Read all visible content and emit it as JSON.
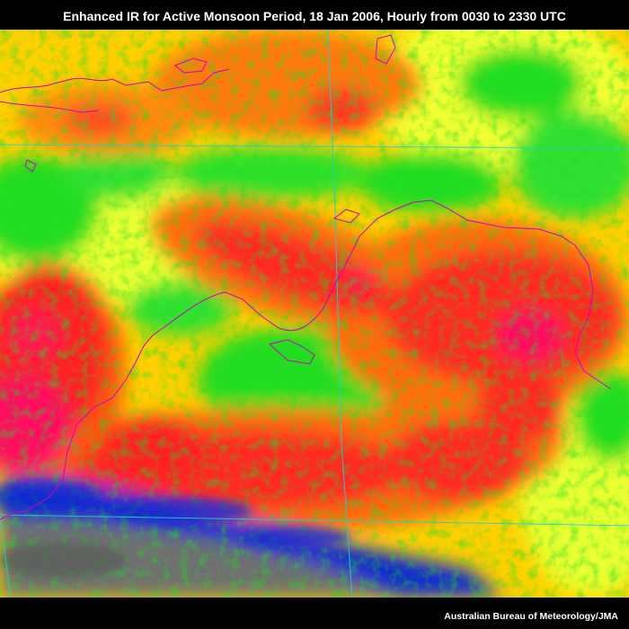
{
  "title": "Enhanced IR for Active Monsoon Period, 18 Jan 2006, Hourly from 0030 to 2330 UTC",
  "credit": "Australian Bureau of Meteorology/JMA",
  "colors": {
    "background": "#000000",
    "cold_cloud_top": "#ff1060",
    "very_cold": "#ff2a20",
    "cold": "#ff7a10",
    "moderate": "#ffd000",
    "cool": "#d8ff20",
    "mild": "#22dd22",
    "warm": "#0a2ad0",
    "clear_land": "#707070",
    "coastline": "#d000c0",
    "gridline": "#20d0d0",
    "text": "#ffffff"
  }
}
